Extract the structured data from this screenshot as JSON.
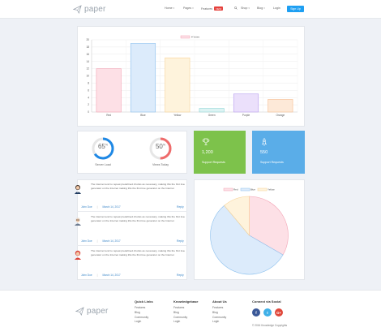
{
  "brand": {
    "name": "paper"
  },
  "nav": {
    "home": "Home",
    "pages": "Pages",
    "features": "Features",
    "features_badge": "NEW",
    "shop": "Shop",
    "blog": "Blog",
    "login": "Login",
    "signup": "Sign Up"
  },
  "chart_data": {
    "type": "bar",
    "categories": [
      "Red",
      "Blue",
      "Yellow",
      "Green",
      "Purple",
      "Orange"
    ],
    "series": [
      {
        "name": "# Votes",
        "values": [
          12,
          19,
          15,
          1,
          5,
          3.5
        ]
      }
    ],
    "ylim": [
      0,
      20
    ],
    "yticks": [
      0,
      2,
      4,
      6,
      8,
      10,
      12,
      14,
      16,
      18,
      20
    ],
    "colors_fill": [
      "#fde0e6",
      "#dcebfb",
      "#fef3dc",
      "#ddf3f3",
      "#ebe0fb",
      "#fde9d8"
    ],
    "colors_border": [
      "#f3a3b4",
      "#8cc0ee",
      "#f8d294",
      "#8fd6d6",
      "#b99ef0",
      "#f6bc8e"
    ],
    "legend": "top",
    "grid": true
  },
  "pie_chart_data": {
    "type": "pie",
    "categories": [
      "Red",
      "Blue",
      "Yellow"
    ],
    "values": [
      300,
      500,
      100
    ],
    "fill": [
      "#fde0e6",
      "#dcebfb",
      "#fef3dc"
    ],
    "border": [
      "#f3a3b4",
      "#8cc0ee",
      "#f8d294"
    ]
  },
  "stats": {
    "server_load": {
      "value": "65",
      "unit": "%",
      "label": "Server Load",
      "percent": 65,
      "color": "#1e88e5"
    },
    "views_today": {
      "value": "50",
      "unit": "%",
      "label": "Views Today",
      "percent": 50,
      "color": "#ef6b6b"
    }
  },
  "support_green": {
    "value": "1,200",
    "label": "Support Requests",
    "color": "#7dc24b"
  },
  "support_blue": {
    "value": "550",
    "label": "Support Requests",
    "color": "#5aade8"
  },
  "comments": [
    {
      "text": "The internet tend to repeat predefined chunks as necessary, making this the first true generator on the Internet making this the first true generator on the Internet",
      "author": "John Doe",
      "date": "March 14, 2017",
      "reply": "Reply"
    },
    {
      "text": "The internet tend to repeat predefined chunks as necessary, making this the first true generator on the Internet making this the first true generator on the Internet",
      "author": "John Doe",
      "date": "March 14, 2017",
      "reply": "Reply"
    },
    {
      "text": "The internet tend to repeat predefined chunks as necessary, making this the first true generator on the Internet making this the first true generator on the Internet",
      "author": "John Doe",
      "date": "March 14, 2017",
      "reply": "Reply"
    }
  ],
  "footer": {
    "quick_links": {
      "title": "Quick Links",
      "items": [
        "Features",
        "Blog",
        "Community",
        "Login"
      ]
    },
    "knowledgebase": {
      "title": "Knowledgebase",
      "items": [
        "Features",
        "Blog",
        "Community",
        "Login"
      ]
    },
    "about": {
      "title": "About Us",
      "items": [
        "Features",
        "Blog",
        "Community",
        "Login"
      ]
    },
    "connect": {
      "title": "Connect via Social",
      "facebook": "f",
      "twitter": "t",
      "google": "G+"
    },
    "copyright": "© 2016 Knowledge Copyrights"
  }
}
